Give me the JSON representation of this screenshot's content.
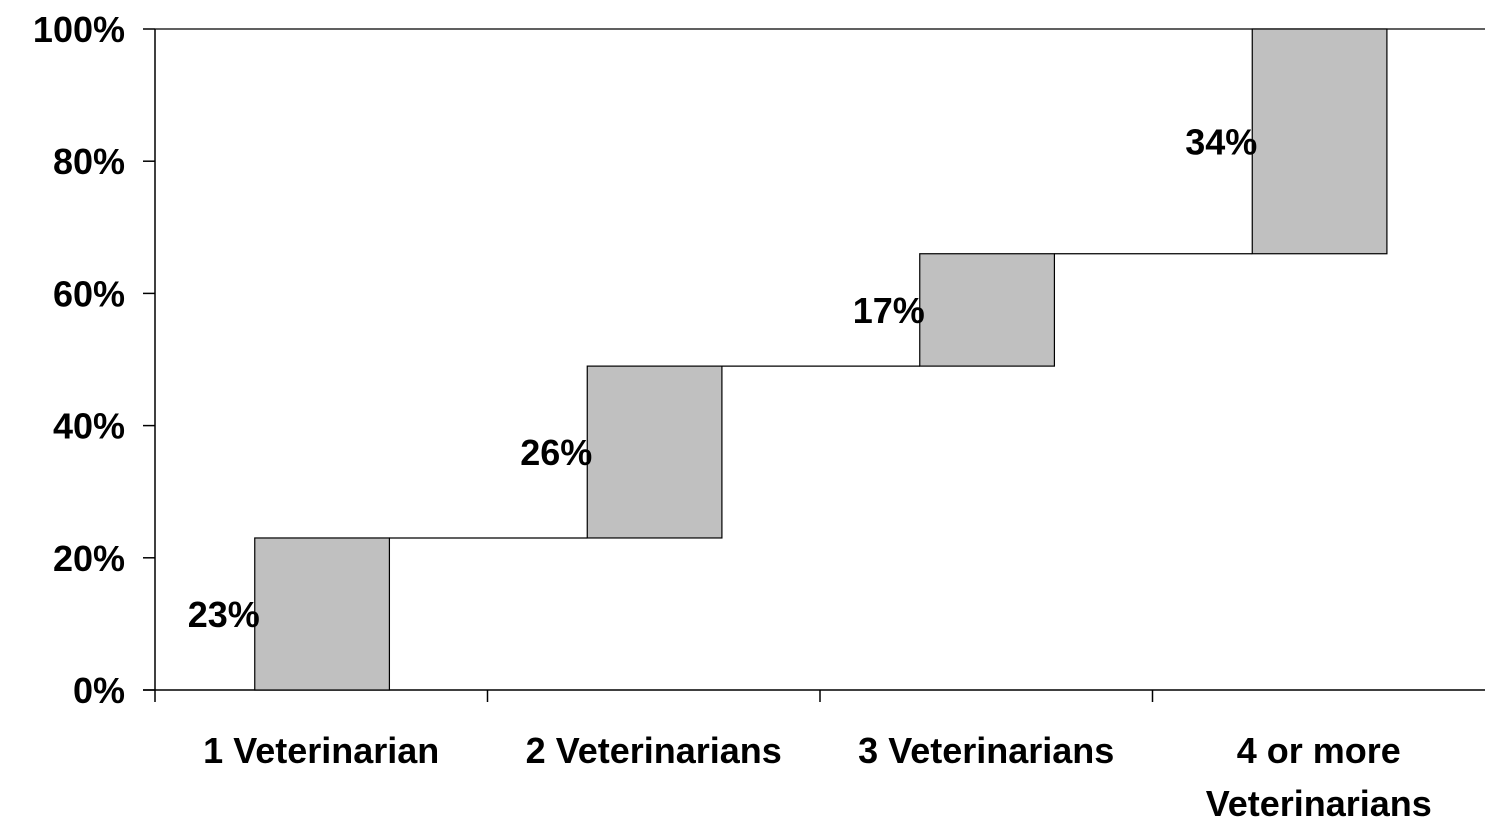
{
  "chart_data": {
    "type": "bar",
    "subtype": "waterfall",
    "categories": [
      "1 Veterinarian",
      "2 Veterinarians",
      "3 Veterinarians",
      "4 or more Veterinarians"
    ],
    "category_lines": [
      [
        "1 Veterinarian"
      ],
      [
        "2 Veterinarians"
      ],
      [
        "3 Veterinarians"
      ],
      [
        "4 or more",
        "Veterinarians"
      ]
    ],
    "values": [
      23,
      26,
      17,
      34
    ],
    "data_labels": [
      "23%",
      "26%",
      "17%",
      "34%"
    ],
    "ylim": [
      0,
      100
    ],
    "yticks": [
      0,
      20,
      40,
      60,
      80,
      100
    ],
    "ytick_labels": [
      "0%",
      "20%",
      "40%",
      "60%",
      "80%",
      "100%"
    ],
    "bar_color": "#c0c0c0",
    "grid": false,
    "legend": "none"
  }
}
